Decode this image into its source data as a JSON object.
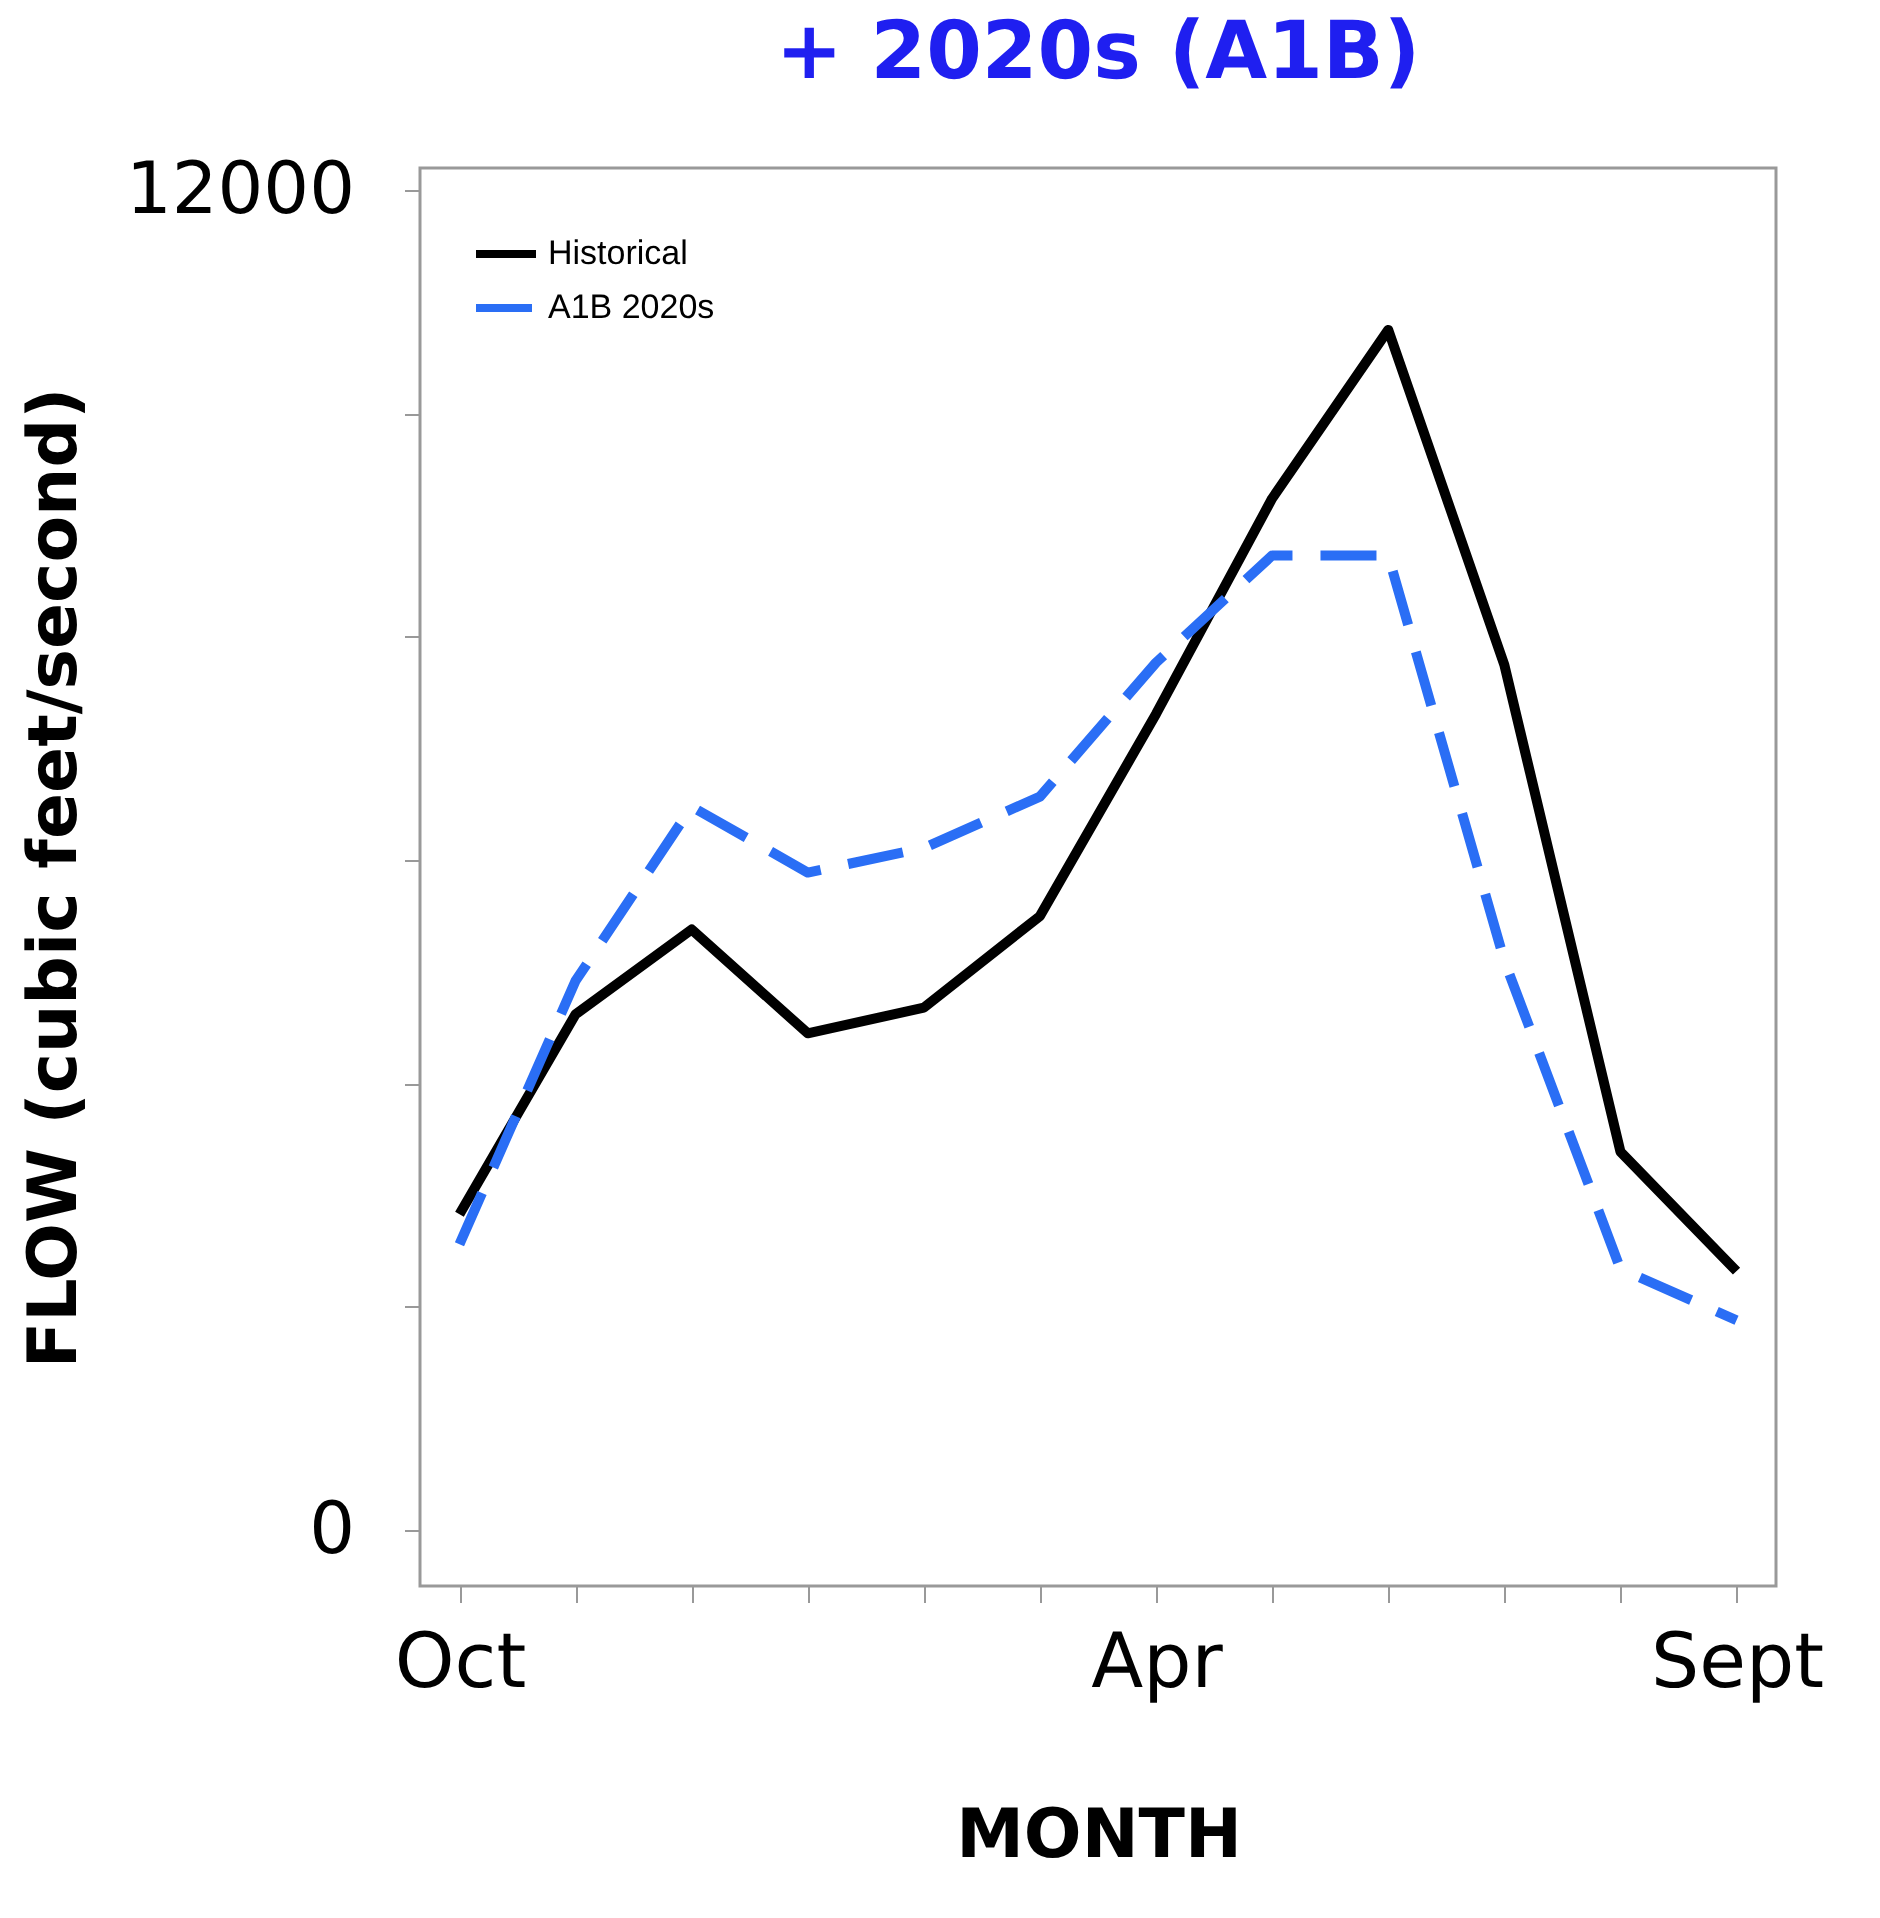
{
  "chart_data": {
    "type": "line",
    "title": "+ 2020s (A1B)",
    "xlabel": "MONTH",
    "ylabel": "FLOW (cubic feet/second)",
    "categories": [
      "Oct",
      null,
      null,
      null,
      null,
      null,
      "Apr",
      null,
      null,
      null,
      null,
      "Sept"
    ],
    "series": [
      {
        "name": "Historical",
        "color": "#000000",
        "line_style": "solid",
        "values": [
          2830,
          4620,
          5380,
          4450,
          4680,
          5500,
          7310,
          9240,
          10750,
          7750,
          3390,
          2320
        ]
      },
      {
        "name": "A1B 2020s",
        "color": "#2a6ef5",
        "line_style": "dashed",
        "values": [
          2560,
          4920,
          6480,
          5890,
          6110,
          6570,
          7770,
          8730,
          8730,
          5100,
          2340,
          1880
        ]
      }
    ],
    "ylim": [
      -500,
      12200
    ],
    "yticks": [
      0,
      {
        "value": 2000,
        "label": null
      },
      {
        "value": 4000,
        "label": null
      },
      {
        "value": 6000,
        "label": null
      },
      {
        "value": 8000,
        "label": null
      },
      {
        "value": 10000,
        "label": null
      },
      12000
    ],
    "grid": false,
    "legend": "top left",
    "marker": "none"
  }
}
